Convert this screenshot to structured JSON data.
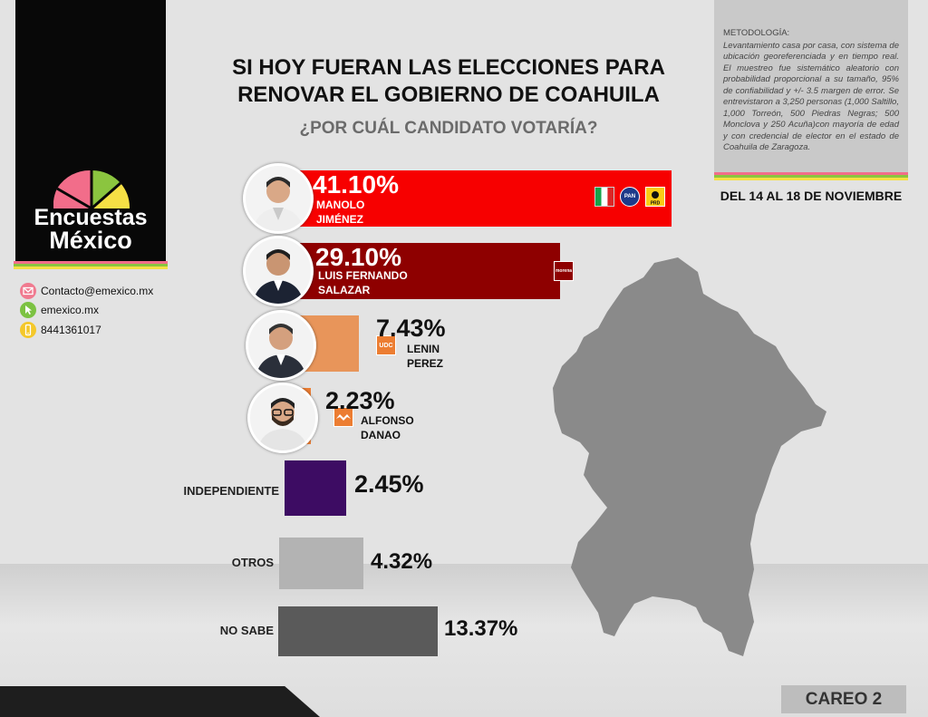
{
  "title_line1": "SI HOY FUERAN LAS ELECCIONES PARA",
  "title_line2": "RENOVAR EL GOBIERNO DE COAHUILA",
  "subtitle": "¿POR CUÁL CANDIDATO VOTARÍA?",
  "brand": {
    "line1": "Encuestas",
    "line2": "México"
  },
  "contacts": [
    {
      "icon": "mail-icon",
      "text": "Contacto@emexico.mx"
    },
    {
      "icon": "web-icon",
      "text": "emexico.mx"
    },
    {
      "icon": "phone-icon",
      "text": "8441361017"
    }
  ],
  "methodology": {
    "heading": "METODOLOGÍA:",
    "body": "Levantamiento casa por casa, con sistema de ubicación georeferenciada y en tiempo real. El muestreo fue sistemático aleatorio con probabilidad proporcional a su tamaño, 95% de confiabilidad y +/- 3.5 margen de error. Se entrevistaron a 3,250 personas (1,000 Saltillo, 1,000 Torreón, 500 Piedras Negras; 500 Monclova y 250 Acuña)con mayoría de edad y con credencial de elector en el estado de Coahuila de Zaragoza."
  },
  "dates": "DEL 14 AL 18 DE NOVIEMBRE",
  "footer_tag": "CAREO 2",
  "colors": {
    "pri_red": "#f70000",
    "morena": "#8e0000",
    "udc": "#e8955a",
    "mc": "#ec7d32",
    "independiente": "#3d0c63",
    "otros": "#b3b3b3",
    "no_sabe": "#5a5a5a",
    "stripe1": "#f26d8a",
    "stripe2": "#8bc53f",
    "stripe3": "#f6e045"
  },
  "chart_data": {
    "type": "bar",
    "orientation": "horizontal",
    "title": "SI HOY FUERAN LAS ELECCIONES PARA RENOVAR EL GOBIERNO DE COAHUILA",
    "subtitle": "¿POR CUÁL CANDIDATO VOTARÍA?",
    "categories": [
      "MANOLO JIMÉNEZ",
      "LUIS FERNANDO SALAZAR",
      "LENIN PEREZ",
      "ALFONSO DANAO",
      "INDEPENDIENTE",
      "OTROS",
      "NO SABE"
    ],
    "values": [
      41.1,
      29.1,
      7.43,
      2.23,
      2.45,
      4.32,
      13.37
    ],
    "labels": [
      "41.10%",
      "29.10%",
      "7.43%",
      "2.23%",
      "2.45%",
      "4.32%",
      "13.37%"
    ],
    "candidates": [
      {
        "name_line1": "MANOLO",
        "name_line2": "JIMÉNEZ",
        "parties": [
          "PRI",
          "PAN",
          "PRD"
        ]
      },
      {
        "name_line1": "LUIS FERNANDO",
        "name_line2": "SALAZAR",
        "parties": [
          "morena"
        ]
      },
      {
        "name_line1": "LENIN",
        "name_line2": "PEREZ",
        "parties": [
          "UDC"
        ]
      },
      {
        "name_line1": "ALFONSO",
        "name_line2": "DANAO",
        "parties": [
          "MC"
        ]
      }
    ],
    "others": [
      "INDEPENDIENTE",
      "OTROS",
      "NO SABE"
    ]
  }
}
